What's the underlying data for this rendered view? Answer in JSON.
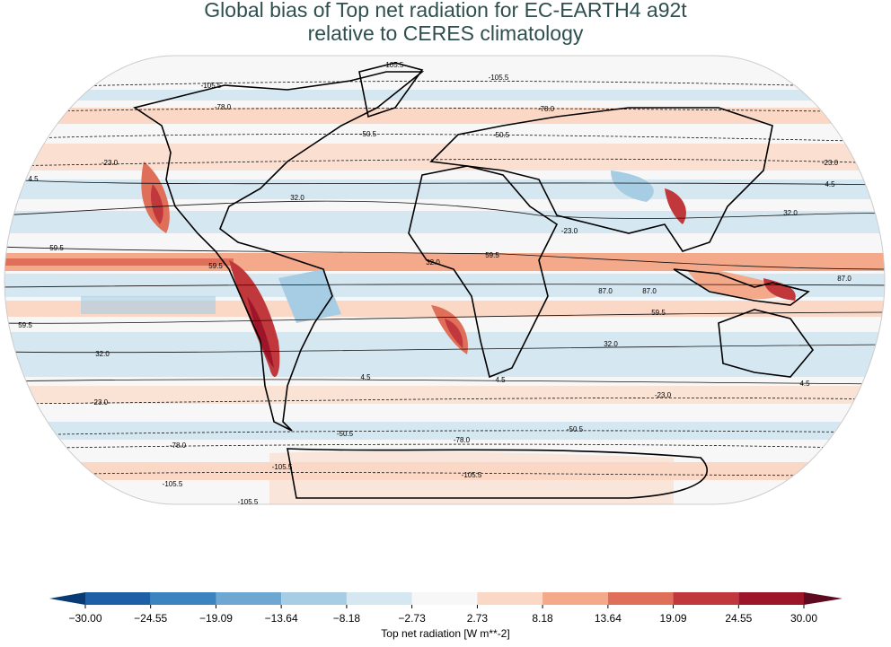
{
  "chart_data": {
    "type": "map",
    "title_lines": [
      "Global bias of Top net radiation for EC-EARTH4 a92t",
      "relative to CERES climatology"
    ],
    "contour_labels": [
      -105.5,
      -105.5,
      -105.5,
      {
        "value": -78.0,
        "label": "-78.0"
      },
      {
        "value": -78.0,
        "label": "-78.0"
      },
      -50.5,
      -50.5,
      {
        "value": -23.0,
        "label": "-23.0"
      },
      {
        "value": -23.0,
        "label": "-23.0"
      },
      4.5,
      4.5,
      {
        "value": 32.0,
        "label": "32.0"
      },
      {
        "value": 32.0,
        "label": "32.0"
      },
      {
        "value": -23.0,
        "label": "-23.0"
      },
      59.5,
      59.5,
      59.5,
      {
        "value": 32.0,
        "label": "32.0"
      },
      {
        "value": 87.0,
        "label": "87.0"
      },
      {
        "value": 87.0,
        "label": "87.0"
      },
      {
        "value": 87.0,
        "label": "87.0"
      },
      59.5,
      59.5,
      {
        "value": 32.0,
        "label": "32.0"
      },
      {
        "value": 32.0,
        "label": "32.0"
      },
      4.5,
      4.5,
      4.5,
      {
        "value": -23.0,
        "label": "-23.0"
      },
      {
        "value": -23.0,
        "label": "-23.0"
      },
      -50.5,
      -50.5,
      {
        "value": -78.0,
        "label": "-78.0"
      },
      {
        "value": -78.0,
        "label": "-78.0"
      },
      -105.5,
      -105.5,
      -105.5,
      -105.5
    ],
    "colorbar": {
      "label": "Top net radiation [W m**-2]",
      "ticks": [
        {
          "value": -30.0,
          "label": "−30.00"
        },
        {
          "value": -24.55,
          "label": "−24.55"
        },
        {
          "value": -19.09,
          "label": "−19.09"
        },
        {
          "value": -13.64,
          "label": "−13.64"
        },
        {
          "value": -8.18,
          "label": "−8.18"
        },
        {
          "value": -2.73,
          "label": "−2.73"
        },
        {
          "value": 2.73,
          "label": "2.73"
        },
        {
          "value": 8.18,
          "label": "8.18"
        },
        {
          "value": 13.64,
          "label": "13.64"
        },
        {
          "value": 19.09,
          "label": "19.09"
        },
        {
          "value": 24.55,
          "label": "24.55"
        },
        {
          "value": 30.0,
          "label": "30.00"
        }
      ],
      "colors": [
        "#1f5fa5",
        "#3b84c0",
        "#6ea8d2",
        "#a6cde3",
        "#d5e7f1",
        "#f7f7f7",
        "#fbd8c6",
        "#f4a98b",
        "#df6f59",
        "#c0383b",
        "#9d1528"
      ],
      "extend_colors": [
        "#083b73",
        "#5e0a1f"
      ]
    }
  }
}
